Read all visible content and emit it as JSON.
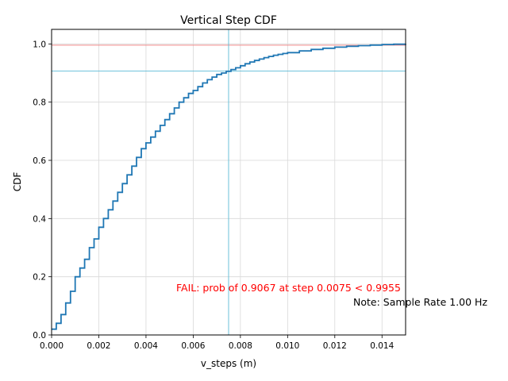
{
  "chart_data": {
    "type": "line",
    "title": "Vertical Step CDF",
    "xlabel": "v_steps (m)",
    "ylabel": "CDF",
    "xlim": [
      0,
      0.015
    ],
    "ylim": [
      0,
      1.05
    ],
    "grid": true,
    "x_ticks": [
      0,
      0.002,
      0.004,
      0.006,
      0.008,
      0.01,
      0.012,
      0.014
    ],
    "x_tick_labels": [
      "0.000",
      "0.002",
      "0.004",
      "0.006",
      "0.008",
      "0.010",
      "0.012",
      "0.014"
    ],
    "y_ticks": [
      0,
      0.2,
      0.4,
      0.6,
      0.8,
      1.0
    ],
    "y_tick_labels": [
      "0.0",
      "0.2",
      "0.4",
      "0.6",
      "0.8",
      "1.0"
    ],
    "series": [
      {
        "color": "#1f77b4",
        "x": [
          0,
          0.0002,
          0.0004,
          0.0006,
          0.0008,
          0.001,
          0.0012,
          0.0014,
          0.0016,
          0.0018,
          0.002,
          0.0022,
          0.0024,
          0.0026,
          0.0028,
          0.003,
          0.0032,
          0.0034,
          0.0036,
          0.0038,
          0.004,
          0.0042,
          0.0044,
          0.0046,
          0.0048,
          0.005,
          0.0052,
          0.0054,
          0.0056,
          0.0058,
          0.006,
          0.0062,
          0.0064,
          0.0066,
          0.0068,
          0.007,
          0.0072,
          0.0074,
          0.0076,
          0.0078,
          0.008,
          0.0082,
          0.0084,
          0.0086,
          0.0088,
          0.009,
          0.0092,
          0.0094,
          0.0096,
          0.0098,
          0.01,
          0.0105,
          0.011,
          0.0115,
          0.012,
          0.0125,
          0.013,
          0.0135,
          0.014,
          0.0145,
          0.015
        ],
        "y": [
          0.02,
          0.04,
          0.07,
          0.11,
          0.15,
          0.2,
          0.23,
          0.26,
          0.3,
          0.33,
          0.37,
          0.4,
          0.43,
          0.46,
          0.49,
          0.52,
          0.55,
          0.58,
          0.61,
          0.64,
          0.66,
          0.68,
          0.7,
          0.72,
          0.74,
          0.76,
          0.78,
          0.8,
          0.815,
          0.83,
          0.84,
          0.853,
          0.866,
          0.877,
          0.886,
          0.895,
          0.9,
          0.906,
          0.912,
          0.918,
          0.925,
          0.932,
          0.938,
          0.943,
          0.948,
          0.953,
          0.957,
          0.961,
          0.964,
          0.967,
          0.97,
          0.976,
          0.981,
          0.985,
          0.989,
          0.992,
          0.994,
          0.996,
          0.998,
          0.999,
          1.0
        ]
      }
    ],
    "reference_lines": [
      {
        "orientation": "horizontal",
        "value": 0.9955,
        "color": "#f27c7c"
      },
      {
        "orientation": "horizontal",
        "value": 0.9067,
        "color": "#5bbcd6"
      },
      {
        "orientation": "vertical",
        "value": 0.0075,
        "color": "#5bbcd6"
      }
    ],
    "annotations": [
      {
        "text": "FAIL: prob of 0.9067 at step 0.0075 < 0.9955",
        "color": "#ff0000"
      },
      {
        "text": "Note: Sample Rate 1.00 Hz",
        "color": "#000000"
      }
    ]
  }
}
